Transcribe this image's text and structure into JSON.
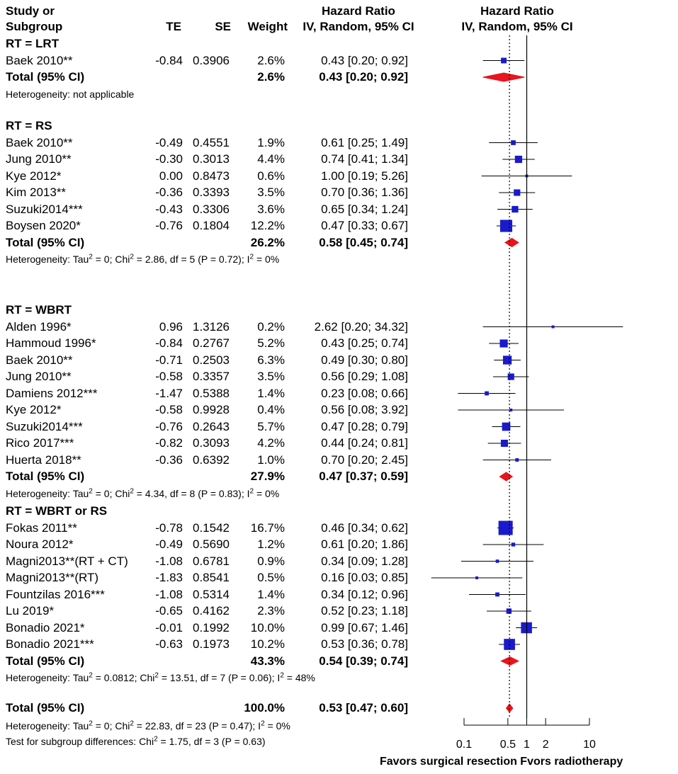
{
  "columns": {
    "study_line1": "Study or",
    "study_line2": "Subgroup",
    "te": "TE",
    "se": "SE",
    "weight": "Weight",
    "hr_line1": "Hazard Ratio",
    "hr_line2": "IV, Random, 95% CI",
    "plot_line1": "Hazard Ratio",
    "plot_line2": "IV, Random, 95% CI"
  },
  "groups": [
    {
      "label": "RT = LRT",
      "studies": [
        {
          "name": "Baek 2010**",
          "te": "-0.84",
          "se": "0.3906",
          "weight": "2.6%",
          "ci": "0.43 [0.20;  0.92]",
          "hr": 0.43,
          "lo": 0.2,
          "hi": 0.92,
          "w": 2.6
        }
      ],
      "total": {
        "label": "Total (95% CI)",
        "weight": "2.6%",
        "ci": "0.43 [0.20;  0.92]",
        "hr": 0.43,
        "lo": 0.2,
        "hi": 0.92
      },
      "heterogeneity": {
        "text": "Heterogeneity: not applicable"
      }
    },
    {
      "label": "RT = RS",
      "studies": [
        {
          "name": "Baek 2010**",
          "te": "-0.49",
          "se": "0.4551",
          "weight": "1.9%",
          "ci": "0.61 [0.25;  1.49]",
          "hr": 0.61,
          "lo": 0.25,
          "hi": 1.49,
          "w": 1.9
        },
        {
          "name": "Jung 2010**",
          "te": "-0.30",
          "se": "0.3013",
          "weight": "4.4%",
          "ci": "0.74 [0.41;  1.34]",
          "hr": 0.74,
          "lo": 0.41,
          "hi": 1.34,
          "w": 4.4
        },
        {
          "name": "Kye 2012*",
          "te": "0.00",
          "se": "0.8473",
          "weight": "0.6%",
          "ci": "1.00 [0.19;  5.26]",
          "hr": 1.0,
          "lo": 0.19,
          "hi": 5.26,
          "w": 0.6
        },
        {
          "name": "Kim 2013**",
          "te": "-0.36",
          "se": "0.3393",
          "weight": "3.5%",
          "ci": "0.70 [0.36;  1.36]",
          "hr": 0.7,
          "lo": 0.36,
          "hi": 1.36,
          "w": 3.5
        },
        {
          "name": "Suzuki2014***",
          "te": "-0.43",
          "se": "0.3306",
          "weight": "3.6%",
          "ci": "0.65 [0.34;  1.24]",
          "hr": 0.65,
          "lo": 0.34,
          "hi": 1.24,
          "w": 3.6
        },
        {
          "name": "Boysen 2020*",
          "te": "-0.76",
          "se": "0.1804",
          "weight": "12.2%",
          "ci": "0.47 [0.33;  0.67]",
          "hr": 0.47,
          "lo": 0.33,
          "hi": 0.67,
          "w": 12.2
        }
      ],
      "total": {
        "label": "Total (95% CI)",
        "weight": "26.2%",
        "ci": "0.58 [0.45;  0.74]",
        "hr": 0.58,
        "lo": 0.45,
        "hi": 0.74
      },
      "heterogeneity": {
        "tau": "Heterogeneity: Tau",
        "chi": " = 0; Chi",
        "rest": " = 2.86, df = 5 (P = 0.72); I",
        "end": " = 0%"
      }
    },
    {
      "label": "RT = WBRT",
      "studies": [
        {
          "name": "Alden 1996*",
          "te": "0.96",
          "se": "1.3126",
          "weight": "0.2%",
          "ci": "2.62 [0.20; 34.32]",
          "hr": 2.62,
          "lo": 0.2,
          "hi": 34.32,
          "w": 0.2
        },
        {
          "name": "Hammoud 1996*",
          "te": "-0.84",
          "se": "0.2767",
          "weight": "5.2%",
          "ci": "0.43 [0.25;  0.74]",
          "hr": 0.43,
          "lo": 0.25,
          "hi": 0.74,
          "w": 5.2
        },
        {
          "name": "Baek 2010**",
          "te": "-0.71",
          "se": "0.2503",
          "weight": "6.3%",
          "ci": "0.49 [0.30;  0.80]",
          "hr": 0.49,
          "lo": 0.3,
          "hi": 0.8,
          "w": 6.3
        },
        {
          "name": "Jung 2010**",
          "te": "-0.58",
          "se": "0.3357",
          "weight": "3.5%",
          "ci": "0.56 [0.29;  1.08]",
          "hr": 0.56,
          "lo": 0.29,
          "hi": 1.08,
          "w": 3.5
        },
        {
          "name": "Damiens 2012***",
          "te": "-1.47",
          "se": "0.5388",
          "weight": "1.4%",
          "ci": "0.23 [0.08;  0.66]",
          "hr": 0.23,
          "lo": 0.08,
          "hi": 0.66,
          "w": 1.4
        },
        {
          "name": "Kye 2012*",
          "te": "-0.58",
          "se": "0.9928",
          "weight": "0.4%",
          "ci": "0.56 [0.08;  3.92]",
          "hr": 0.56,
          "lo": 0.08,
          "hi": 3.92,
          "w": 0.4
        },
        {
          "name": "Suzuki2014***",
          "te": "-0.76",
          "se": "0.2643",
          "weight": "5.7%",
          "ci": "0.47 [0.28;  0.79]",
          "hr": 0.47,
          "lo": 0.28,
          "hi": 0.79,
          "w": 5.7
        },
        {
          "name": "Rico 2017***",
          "te": "-0.82",
          "se": "0.3093",
          "weight": "4.2%",
          "ci": "0.44 [0.24;  0.81]",
          "hr": 0.44,
          "lo": 0.24,
          "hi": 0.81,
          "w": 4.2
        },
        {
          "name": "Huerta 2018**",
          "te": "-0.36",
          "se": "0.6392",
          "weight": "1.0%",
          "ci": "0.70 [0.20;  2.45]",
          "hr": 0.7,
          "lo": 0.2,
          "hi": 2.45,
          "w": 1.0
        }
      ],
      "total": {
        "label": "Total (95% CI)",
        "weight": "27.9%",
        "ci": "0.47 [0.37;  0.59]",
        "hr": 0.47,
        "lo": 0.37,
        "hi": 0.59
      },
      "heterogeneity": {
        "tau": "Heterogeneity: Tau",
        "chi": " = 0; Chi",
        "rest": " = 4.34, df = 8 (P = 0.83); I",
        "end": " = 0%"
      }
    },
    {
      "label": "RT = WBRT or RS",
      "studies": [
        {
          "name": "Fokas 2011**",
          "te": "-0.78",
          "se": "0.1542",
          "weight": "16.7%",
          "ci": "0.46 [0.34;  0.62]",
          "hr": 0.46,
          "lo": 0.34,
          "hi": 0.62,
          "w": 16.7
        },
        {
          "name": "Noura 2012*",
          "te": "-0.49",
          "se": "0.5690",
          "weight": "1.2%",
          "ci": "0.61 [0.20;  1.86]",
          "hr": 0.61,
          "lo": 0.2,
          "hi": 1.86,
          "w": 1.2
        },
        {
          "name": "Magni2013**(RT + CT)",
          "te": "-1.08",
          "se": "0.6781",
          "weight": "0.9%",
          "ci": "0.34 [0.09;  1.28]",
          "hr": 0.34,
          "lo": 0.09,
          "hi": 1.28,
          "w": 0.9
        },
        {
          "name": "Magni2013**(RT)",
          "te": "-1.83",
          "se": "0.8541",
          "weight": "0.5%",
          "ci": "0.16 [0.03;  0.85]",
          "hr": 0.16,
          "lo": 0.03,
          "hi": 0.85,
          "w": 0.5
        },
        {
          "name": "Fountzilas 2016***",
          "te": "-1.08",
          "se": "0.5314",
          "weight": "1.4%",
          "ci": "0.34 [0.12;  0.96]",
          "hr": 0.34,
          "lo": 0.12,
          "hi": 0.96,
          "w": 1.4
        },
        {
          "name": "Lu 2019*",
          "te": "-0.65",
          "se": "0.4162",
          "weight": "2.3%",
          "ci": "0.52 [0.23;  1.18]",
          "hr": 0.52,
          "lo": 0.23,
          "hi": 1.18,
          "w": 2.3
        },
        {
          "name": "Bonadio 2021*",
          "te": "-0.01",
          "se": "0.1992",
          "weight": "10.0%",
          "ci": "0.99 [0.67;  1.46]",
          "hr": 0.99,
          "lo": 0.67,
          "hi": 1.46,
          "w": 10.0
        },
        {
          "name": "Bonadio 2021***",
          "te": "-0.63",
          "se": "0.1973",
          "weight": "10.2%",
          "ci": "0.53 [0.36;  0.78]",
          "hr": 0.53,
          "lo": 0.36,
          "hi": 0.78,
          "w": 10.2
        }
      ],
      "total": {
        "label": "Total (95% CI)",
        "weight": "43.3%",
        "ci": "0.54 [0.39;  0.74]",
        "hr": 0.54,
        "lo": 0.39,
        "hi": 0.74
      },
      "heterogeneity": {
        "tau": "Heterogeneity: Tau",
        "chi": " = 0.0812; Chi",
        "rest": " = 13.51, df = 7 (P = 0.06); I",
        "end": " = 48%"
      }
    }
  ],
  "overall": {
    "label": "Total (95% CI)",
    "weight": "100.0%",
    "ci": "0.53 [0.47;  0.60]",
    "hr": 0.53,
    "lo": 0.47,
    "hi": 0.6,
    "heterogeneity": {
      "tau": "Heterogeneity: Tau",
      "chi": " = 0; Chi",
      "rest": " = 22.83, df = 23 (P = 0.47); I",
      "end": " = 0%"
    },
    "subgroup_test": {
      "pre": "Test for subgroup differences: Chi",
      "post": " = 1.75, df = 3 (P = 0.63)"
    },
    "sup2": "2"
  },
  "axis": {
    "ticks": [
      0.1,
      0.5,
      1,
      2,
      10
    ],
    "tick_labels": [
      "0.1",
      "0.5",
      "1",
      "2",
      "10"
    ],
    "label": "Favors surgical resection Fvors radiotherapy",
    "null_value": 1,
    "pooled_value": 0.53
  },
  "colors": {
    "study": "#1a1acc",
    "pooled": "#e8141e",
    "line": "#000000"
  },
  "chart_data": {
    "type": "forest",
    "title": "Hazard Ratio IV, Random, 95% CI",
    "xlabel": "Favors surgical resection Fvors radiotherapy",
    "xscale": "log",
    "xlim": [
      0.1,
      10
    ],
    "xticks": [
      0.1,
      0.5,
      1,
      2,
      10
    ]
  }
}
